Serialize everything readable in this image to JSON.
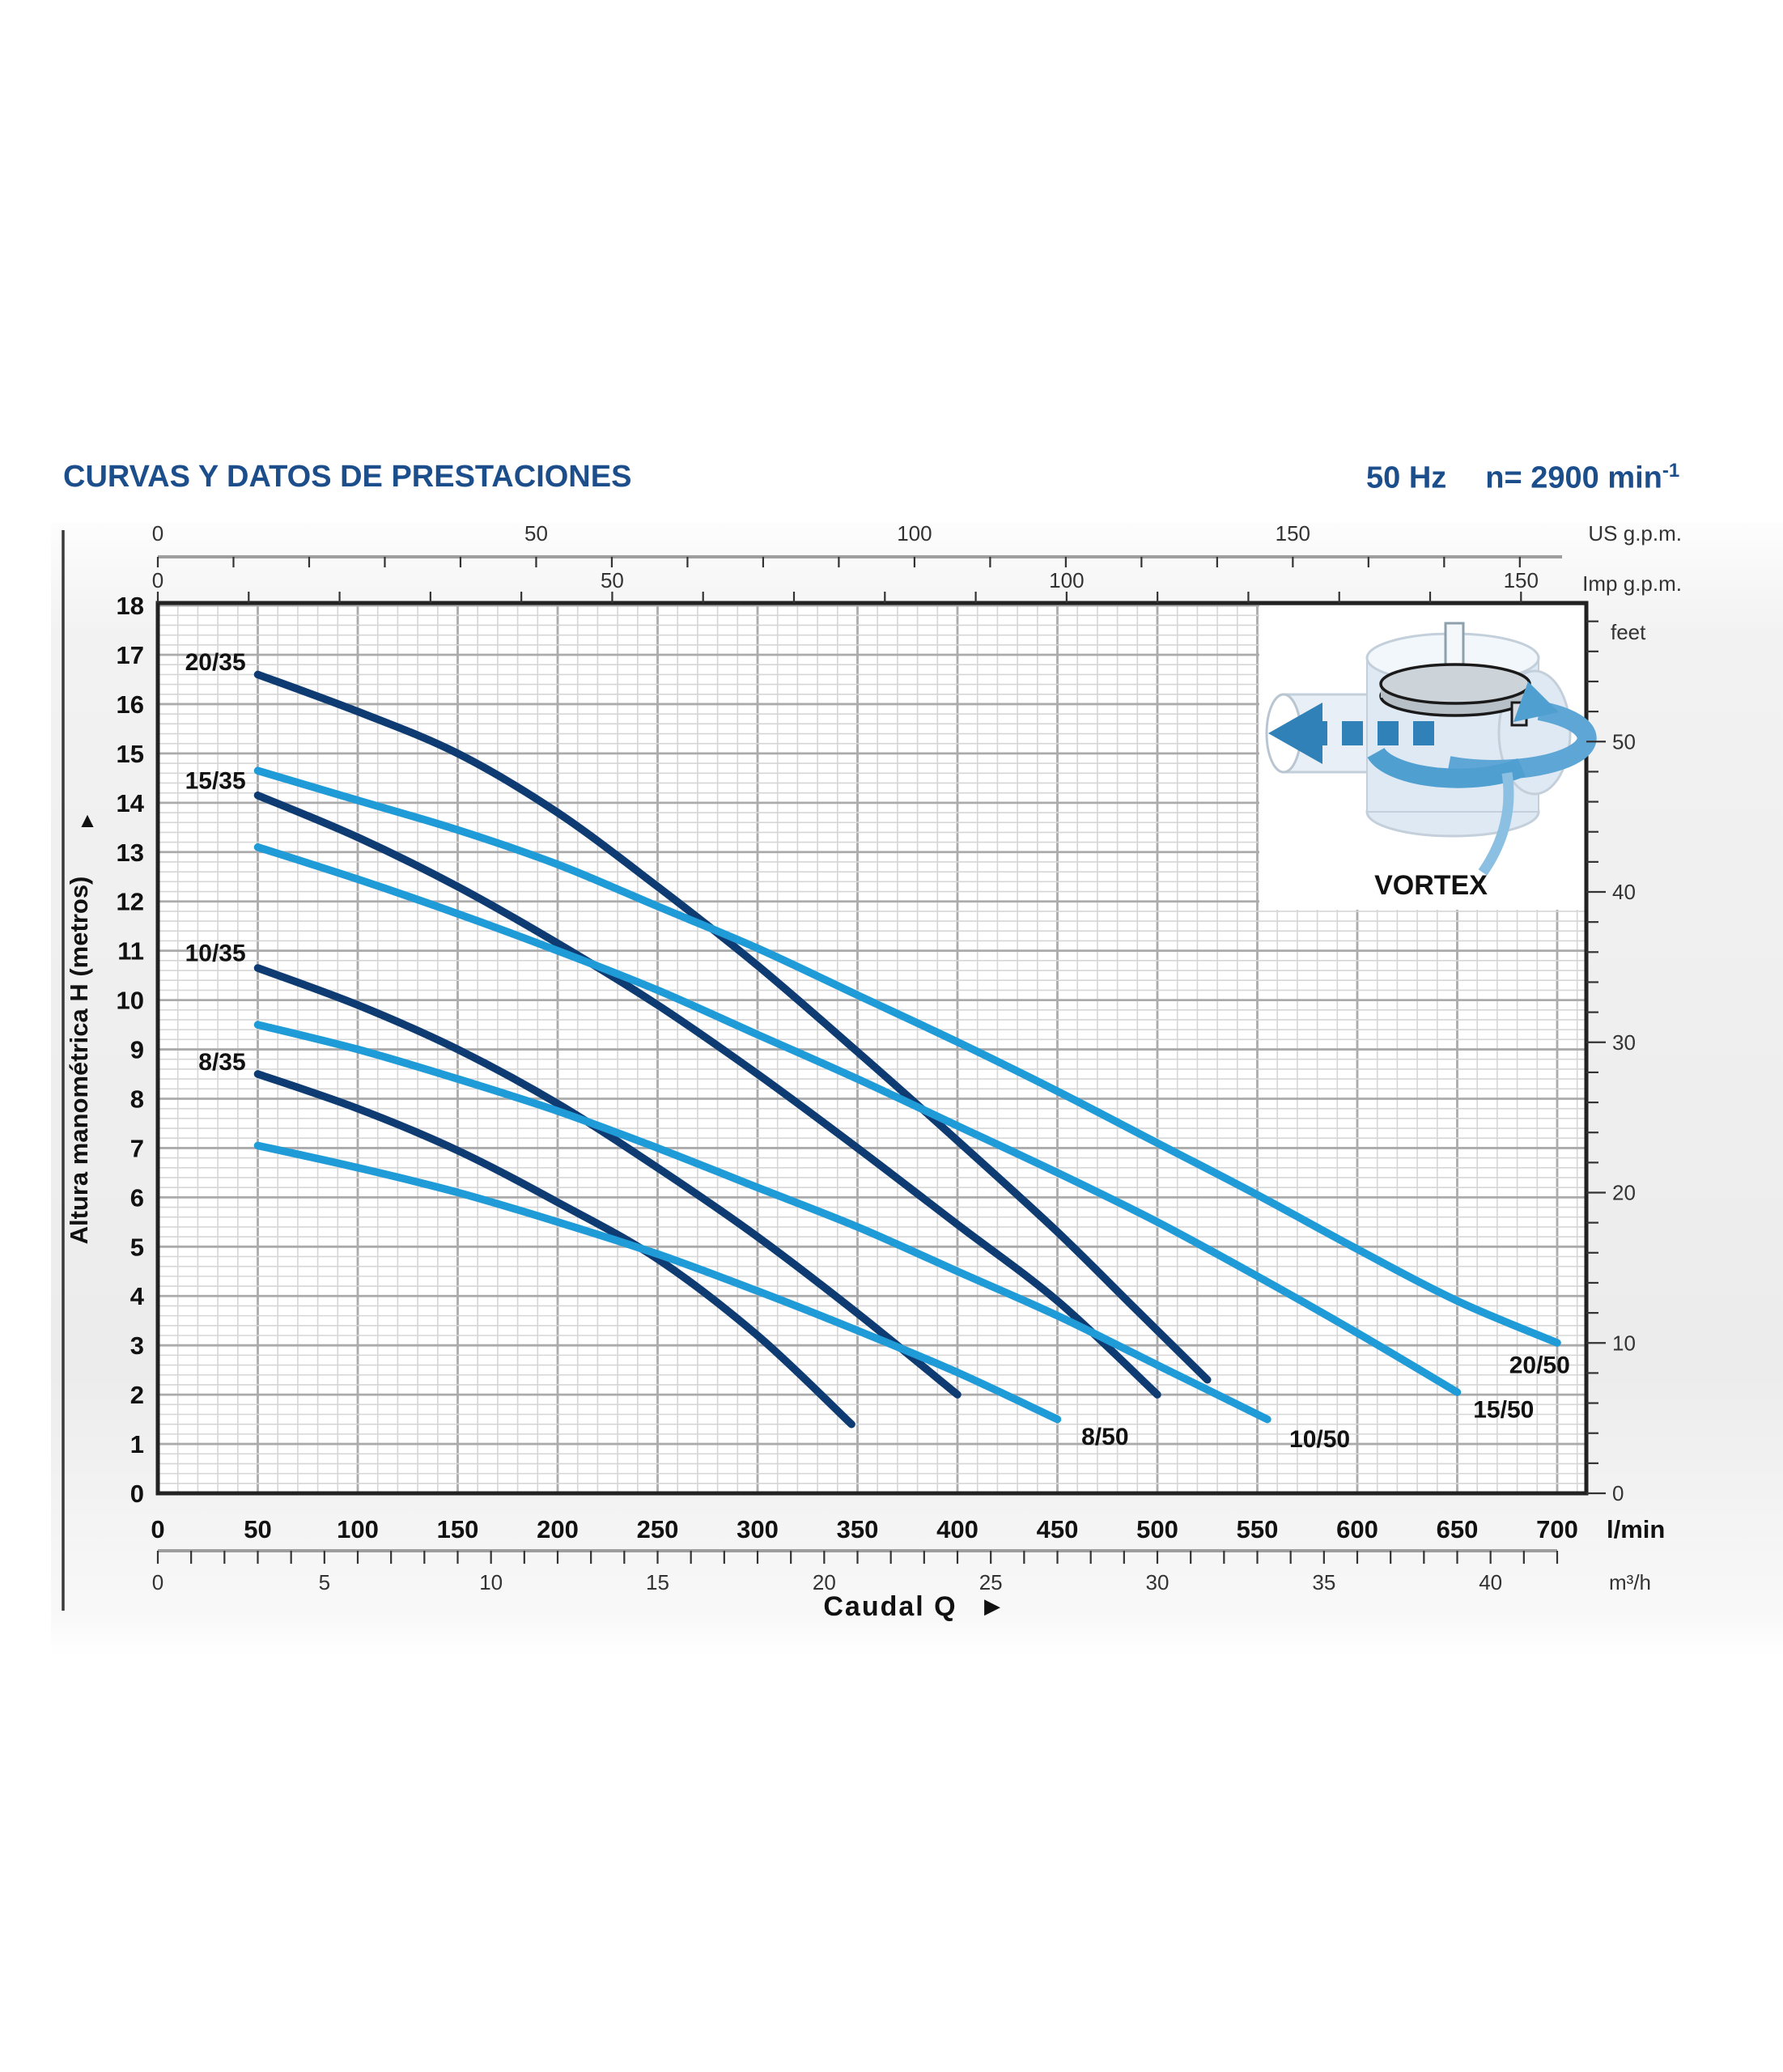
{
  "header": {
    "title": "CURVAS Y DATOS DE PRESTACIONES",
    "frequency": "50 Hz",
    "speed_prefix": "n= 2900 min",
    "speed_exponent": "-1"
  },
  "chart_data": {
    "type": "line",
    "title": "CURVAS Y DATOS DE PRESTACIONES",
    "subtitle": "50 Hz  n= 2900 min-1",
    "xlabel": "Caudal Q",
    "ylabel": "Altura manométrica H (metros)",
    "inset_label": "VORTEX",
    "icons": {
      "arrow_right": "▶",
      "arrow_up": "▲"
    },
    "units": {
      "flow_primary": "l/min",
      "flow_secondary": "m³/h",
      "flow_us": "US g.p.m.",
      "flow_imp": "Imp g.p.m.",
      "head_right": "feet"
    },
    "colors": {
      "dark_series": "#0e3c72",
      "light_series": "#1f9bd7",
      "title_blue": "#1d4e8c",
      "grid_minor": "#d6d6d6",
      "grid_major": "#ababab",
      "plot_border": "#222222",
      "gray_axis": "#9e9e9e"
    },
    "legend_position": "labels-on-curves",
    "grid": true,
    "axes": {
      "x_lmin": {
        "title": "l/min",
        "min": 0,
        "max": 715,
        "minor_step": 10,
        "major_step": 50,
        "label_values": [
          0,
          50,
          100,
          150,
          200,
          250,
          300,
          350,
          400,
          450,
          500,
          550,
          600,
          650,
          700
        ]
      },
      "x_m3h": {
        "title": "m³/h",
        "min": 0,
        "max": 42,
        "minor_step": 1,
        "label_values": [
          0,
          5,
          10,
          15,
          20,
          25,
          30,
          35,
          40
        ]
      },
      "x_usgpm": {
        "title": "US g.p.m.",
        "min": 0,
        "max": 180,
        "minor_step": 10,
        "label_values": [
          0,
          50,
          100,
          150
        ]
      },
      "x_impgpm": {
        "title": "Imp g.p.m.",
        "min": 0,
        "max": 150,
        "minor_step": 10,
        "label_values": [
          0,
          50,
          100,
          150
        ]
      },
      "y_m": {
        "title": "Altura manométrica H (metros)",
        "min": 0,
        "max": 18.05,
        "minor_step": 0.2,
        "major_step": 1,
        "label_values": [
          0,
          1,
          2,
          3,
          4,
          5,
          6,
          7,
          8,
          9,
          10,
          11,
          12,
          13,
          14,
          15,
          16,
          17,
          18
        ]
      },
      "y_feet": {
        "title": "feet",
        "min": 0,
        "max": 58,
        "minor_step": 2,
        "label_values": [
          0,
          10,
          20,
          30,
          40,
          50
        ]
      }
    },
    "series": [
      {
        "name": "20/35",
        "family": "35",
        "points": [
          [
            50,
            16.6
          ],
          [
            100,
            15.85
          ],
          [
            150,
            15.0
          ],
          [
            200,
            13.8
          ],
          [
            250,
            12.3
          ],
          [
            300,
            10.7
          ],
          [
            350,
            8.95
          ],
          [
            400,
            7.15
          ],
          [
            450,
            5.3
          ],
          [
            490,
            3.7
          ],
          [
            525,
            2.3
          ]
        ]
      },
      {
        "name": "15/35",
        "family": "35",
        "points": [
          [
            50,
            14.15
          ],
          [
            100,
            13.3
          ],
          [
            150,
            12.3
          ],
          [
            200,
            11.15
          ],
          [
            250,
            9.9
          ],
          [
            300,
            8.5
          ],
          [
            350,
            7.0
          ],
          [
            400,
            5.45
          ],
          [
            450,
            3.9
          ],
          [
            500,
            2.0
          ]
        ]
      },
      {
        "name": "10/35",
        "family": "35",
        "points": [
          [
            50,
            10.65
          ],
          [
            100,
            9.9
          ],
          [
            150,
            9.0
          ],
          [
            200,
            7.9
          ],
          [
            250,
            6.6
          ],
          [
            300,
            5.2
          ],
          [
            350,
            3.65
          ],
          [
            400,
            2.0
          ]
        ]
      },
      {
        "name": "8/35",
        "family": "35",
        "points": [
          [
            50,
            8.5
          ],
          [
            100,
            7.8
          ],
          [
            150,
            6.95
          ],
          [
            200,
            5.9
          ],
          [
            250,
            4.75
          ],
          [
            300,
            3.2
          ],
          [
            347,
            1.4
          ]
        ]
      },
      {
        "name": "20/50",
        "family": "50",
        "points": [
          [
            50,
            14.65
          ],
          [
            100,
            14.05
          ],
          [
            150,
            13.45
          ],
          [
            200,
            12.75
          ],
          [
            250,
            11.9
          ],
          [
            300,
            11.05
          ],
          [
            350,
            10.1
          ],
          [
            400,
            9.15
          ],
          [
            450,
            8.15
          ],
          [
            500,
            7.1
          ],
          [
            550,
            6.05
          ],
          [
            600,
            4.95
          ],
          [
            650,
            3.9
          ],
          [
            700,
            3.05
          ]
        ]
      },
      {
        "name": "15/50",
        "family": "50",
        "points": [
          [
            50,
            13.1
          ],
          [
            100,
            12.45
          ],
          [
            150,
            11.75
          ],
          [
            200,
            11.0
          ],
          [
            250,
            10.2
          ],
          [
            300,
            9.3
          ],
          [
            350,
            8.4
          ],
          [
            400,
            7.45
          ],
          [
            450,
            6.5
          ],
          [
            500,
            5.5
          ],
          [
            550,
            4.4
          ],
          [
            600,
            3.25
          ],
          [
            650,
            2.05
          ]
        ]
      },
      {
        "name": "10/50",
        "family": "50",
        "points": [
          [
            50,
            9.5
          ],
          [
            100,
            9.0
          ],
          [
            150,
            8.4
          ],
          [
            200,
            7.75
          ],
          [
            250,
            7.0
          ],
          [
            300,
            6.2
          ],
          [
            350,
            5.4
          ],
          [
            400,
            4.5
          ],
          [
            450,
            3.6
          ],
          [
            500,
            2.6
          ],
          [
            555,
            1.5
          ]
        ]
      },
      {
        "name": "8/50",
        "family": "50",
        "points": [
          [
            50,
            7.05
          ],
          [
            100,
            6.6
          ],
          [
            150,
            6.1
          ],
          [
            200,
            5.5
          ],
          [
            250,
            4.85
          ],
          [
            300,
            4.1
          ],
          [
            350,
            3.3
          ],
          [
            400,
            2.45
          ],
          [
            450,
            1.5
          ]
        ]
      }
    ],
    "curve_labels": [
      {
        "text": "20/35",
        "q": 44,
        "h": 16.85,
        "anchor": "end"
      },
      {
        "text": "15/35",
        "q": 44,
        "h": 14.45,
        "anchor": "end"
      },
      {
        "text": "10/35",
        "q": 44,
        "h": 10.95,
        "anchor": "end"
      },
      {
        "text": "8/35",
        "q": 44,
        "h": 8.75,
        "anchor": "end"
      },
      {
        "text": "8/50",
        "q": 462,
        "h": 1.15,
        "anchor": "start"
      },
      {
        "text": "10/50",
        "q": 566,
        "h": 1.1,
        "anchor": "start"
      },
      {
        "text": "15/50",
        "q": 658,
        "h": 1.7,
        "anchor": "start"
      },
      {
        "text": "20/50",
        "q": 676,
        "h": 2.6,
        "anchor": "start"
      }
    ]
  }
}
